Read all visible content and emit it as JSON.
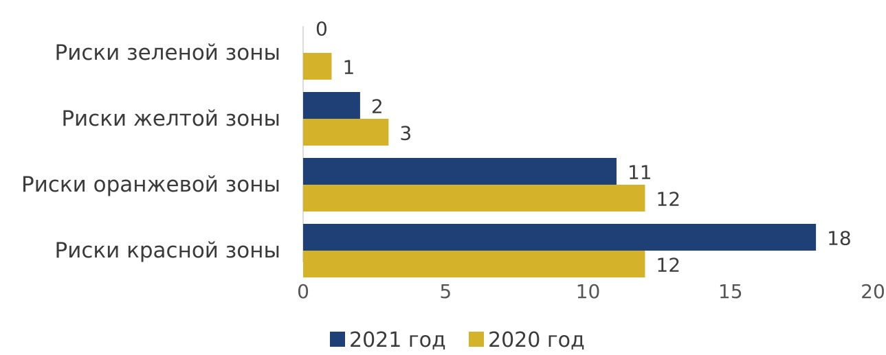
{
  "chart_data": {
    "type": "bar",
    "orientation": "horizontal",
    "categories": [
      "Риски зеленой зоны",
      "Риски желтой зоны",
      "Риски оранжевой зоны",
      "Риски красной зоны"
    ],
    "series": [
      {
        "name": "2021 год",
        "color": "#1f3f77",
        "values": [
          0,
          2,
          11,
          18
        ]
      },
      {
        "name": "2020 год",
        "color": "#d4b22a",
        "values": [
          1,
          3,
          12,
          12
        ]
      }
    ],
    "xlim": [
      0,
      20
    ],
    "xticks": [
      0,
      5,
      10,
      15,
      20
    ],
    "grid": false,
    "legend_position": "bottom"
  }
}
